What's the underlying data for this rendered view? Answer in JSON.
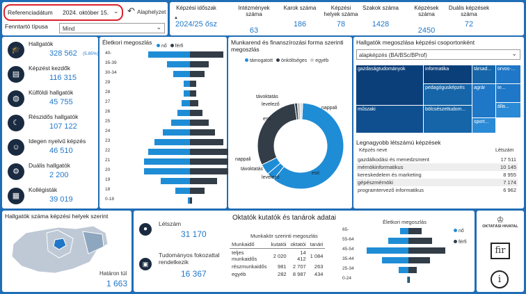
{
  "filters": {
    "ref_label": "Referenciadátum",
    "ref_value": "2024. október 15.",
    "reset_label": "Alaphelyzet",
    "type_label": "Fenntartó típusa",
    "type_value": "Mind"
  },
  "stats": [
    {
      "label": "Képzési időszak",
      "value": "2024/25 ősz"
    },
    {
      "label": "Intézmények száma",
      "value": "63"
    },
    {
      "label": "Karok száma",
      "value": "186"
    },
    {
      "label": "Képzési helyek száma",
      "value": "78"
    },
    {
      "label": "Szakok száma",
      "value": "1428"
    },
    {
      "label": "Képzések száma",
      "value": "2450"
    },
    {
      "label": "Duális képzések száma",
      "value": "72"
    }
  ],
  "kpis": [
    {
      "label": "Hallgatók",
      "value": "328 562",
      "extra": "(5.85%)",
      "icon": "student-icon"
    },
    {
      "label": "Képzést kezdők",
      "value": "116 315",
      "icon": "book-icon"
    },
    {
      "label": "Külföldi hallgatók",
      "value": "45 755",
      "icon": "globe-icon"
    },
    {
      "label": "Részidős hallgatók",
      "value": "107 122",
      "icon": "moon-icon"
    },
    {
      "label": "Idegen nyelvű képzés",
      "value": "46 510",
      "icon": "person-icon"
    },
    {
      "label": "Duális hallgatók",
      "value": "2 200",
      "icon": "gears-icon"
    },
    {
      "label": "Kollégisták",
      "value": "39 019",
      "icon": "building-icon"
    }
  ],
  "age_chart": {
    "title": "Életkori megoszlás",
    "legend": [
      "nő",
      "férfi"
    ],
    "categories": [
      "40-",
      "35-39",
      "30-34",
      "29",
      "28",
      "27",
      "26",
      "25",
      "24",
      "23",
      "22",
      "21",
      "20",
      "19",
      "18",
      "0-18"
    ],
    "series": [
      {
        "name": "nő",
        "color": "#1f8dd6",
        "values": [
          20,
          11,
          8,
          3,
          3,
          4,
          6,
          9,
          13,
          17,
          20,
          22,
          22,
          14,
          7,
          1
        ]
      },
      {
        "name": "férfi",
        "color": "#333d47",
        "values": [
          16,
          9,
          7,
          3,
          3,
          4,
          6,
          9,
          12,
          16,
          19,
          21,
          21,
          13,
          7,
          1
        ]
      }
    ]
  },
  "donut": {
    "title": "Munkarend és finanszírozási forma szerinti megoszlás",
    "legend": [
      "támogatott",
      "önköltséges",
      "egyéb"
    ],
    "outer": [
      {
        "label": "nappali",
        "value": 65,
        "color": "#1f8dd6"
      },
      {
        "label": "esti",
        "value": 4,
        "color": "#1f8dd6"
      },
      {
        "label": "levelező",
        "value": 28,
        "color": "#1f8dd6"
      },
      {
        "label": "távoktatás",
        "value": 3,
        "color": "#1f8dd6"
      }
    ],
    "inner": [
      {
        "label": "nappali",
        "value": 60,
        "color": "#1f8dd6"
      },
      {
        "label": "esti",
        "value": 3,
        "color": "#1f8dd6"
      },
      {
        "label": "levelező",
        "value": 4,
        "color": "#1f8dd6"
      },
      {
        "label": "levelező",
        "value": 30,
        "color": "#333d47"
      },
      {
        "label": "távoktatás",
        "value": 1,
        "color": "#333d47"
      },
      {
        "label": "esti",
        "value": 1,
        "color": "#bbbbbb"
      },
      {
        "label": "egyéb",
        "value": 1,
        "color": "#dddddd"
      }
    ],
    "labels_left": [
      "távoktatás",
      "levelező",
      "esti",
      "nappali",
      "távoktatás",
      "levelező"
    ],
    "labels_right": [
      "nappali",
      "esti"
    ]
  },
  "treemap": {
    "title": "Hallgatók megoszlása képzési csoportonként",
    "dropdown": "alapképzés (BA/BSc/BProf)",
    "cells": [
      {
        "label": "gazdaságtudományok",
        "color": "#0b3f7a"
      },
      {
        "label": "informatika",
        "color": "#0b3f7a"
      },
      {
        "label": "társad...",
        "color": "#1565a8"
      },
      {
        "label": "orvos-...",
        "color": "#1f77c8"
      },
      {
        "label": "pedagógusképzés",
        "color": "#1565a8"
      },
      {
        "label": "agrár",
        "color": "#1f77c8"
      },
      {
        "label": "te...",
        "color": "#1f77c8"
      },
      {
        "label": "műszaki",
        "color": "#0f4f8f"
      },
      {
        "label": "bölcsészettudom...",
        "color": "#1565a8"
      },
      {
        "label": "álla...",
        "color": "#2a8ad6"
      },
      {
        "label": "sport...",
        "color": "#2a8ad6"
      }
    ]
  },
  "largest": {
    "title": "Legnagyobb létszámú képzések",
    "col1": "Képzés neve",
    "col2": "Létszám",
    "rows": [
      [
        "gazdálkodási és menedzsment",
        "17 511"
      ],
      [
        "mérnökinformatikus",
        "10 145"
      ],
      [
        "kereskedelem és marketing",
        "8 955"
      ],
      [
        "gépészmérnöki",
        "7 174"
      ],
      [
        "programtervező informatikus",
        "6 962"
      ]
    ]
  },
  "map": {
    "title": "Hallgatók száma képzési helyek szerint",
    "border_label": "Határon túl",
    "border_value": "1 663"
  },
  "staff": {
    "headcount_label": "Létszám",
    "headcount_value": "31 170",
    "degree_label": "Tudományos fokozattal rendelkezik",
    "degree_value": "16 367",
    "title": "Oktatók kutatók és tanárok adatai",
    "table_title": "Munkakör szerinti megoszlás",
    "headers": [
      "Munkaidő",
      "kutatói",
      "oktatói",
      "tanári"
    ],
    "rows": [
      [
        "teljes munkaidős",
        "2 020",
        "14 412",
        "1 084"
      ],
      [
        "részmunkaidős",
        "981",
        "2 707",
        "263"
      ],
      [
        "egyéb",
        "282",
        "8 987",
        "434"
      ]
    ]
  },
  "staff_age": {
    "title": "Életkori megoszlás",
    "legend": [
      "nő",
      "férfi"
    ],
    "categories": [
      "65-",
      "55-64",
      "45-54",
      "35-44",
      "25-34",
      "0-24"
    ],
    "series": [
      {
        "name": "nő",
        "color": "#1f8dd6",
        "values": [
          5,
          12,
          25,
          16,
          6,
          1
        ]
      },
      {
        "name": "férfi",
        "color": "#333d47",
        "values": [
          8,
          14,
          22,
          13,
          5,
          1
        ]
      }
    ]
  },
  "side": {
    "logo_text": "OKTATÁSI HIVATAL",
    "fir": "fir",
    "info": "i"
  }
}
